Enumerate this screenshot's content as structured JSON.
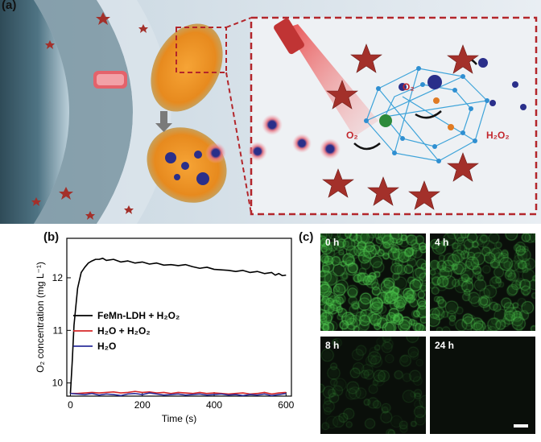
{
  "panels": {
    "a": {
      "label": "(a)",
      "annotations": {
        "o2_upper": "O₂",
        "o2_lower": "O₂",
        "h2o2": "H₂O₂"
      },
      "colors": {
        "membrane": "#3f5f6e",
        "star": "#a3302a",
        "dashed_border": "#b3262b",
        "particle": "#2a2f8a",
        "laser": "#d84a4a",
        "ldh_sheet": "#3da3d9"
      }
    },
    "b": {
      "label": "(b)"
    },
    "c": {
      "label": "(c)",
      "images": [
        {
          "label": "0 h",
          "intensity": 1.0
        },
        {
          "label": "4 h",
          "intensity": 0.7
        },
        {
          "label": "8 h",
          "intensity": 0.3
        },
        {
          "label": "24 h",
          "intensity": 0.0
        }
      ],
      "colors": {
        "fluorescence": "#3fbf3f",
        "background": "#0a0f0a"
      }
    }
  },
  "chart_data": {
    "type": "line",
    "xlabel": "Time (s)",
    "ylabel": "O₂ concentration (mg L⁻¹)",
    "xlim": [
      -10,
      615
    ],
    "ylim": [
      9.75,
      12.75
    ],
    "xticks": [
      0,
      200,
      400,
      600
    ],
    "yticks": [
      10,
      11,
      12
    ],
    "legend_position": "middle-left",
    "series": [
      {
        "name": "FeMn-LDH + H₂O₂",
        "color": "#000000",
        "x": [
          0,
          5,
          10,
          20,
          30,
          40,
          50,
          60,
          70,
          80,
          90,
          100,
          120,
          140,
          160,
          180,
          200,
          220,
          240,
          260,
          280,
          300,
          320,
          340,
          360,
          380,
          400,
          420,
          440,
          460,
          480,
          500,
          520,
          540,
          560,
          570,
          580,
          590,
          600
        ],
        "y": [
          9.8,
          10.4,
          11.1,
          11.8,
          12.1,
          12.2,
          12.28,
          12.32,
          12.35,
          12.35,
          12.37,
          12.33,
          12.35,
          12.3,
          12.32,
          12.28,
          12.3,
          12.26,
          12.28,
          12.24,
          12.25,
          12.23,
          12.25,
          12.21,
          12.18,
          12.2,
          12.16,
          12.15,
          12.14,
          12.12,
          12.14,
          12.1,
          12.12,
          12.08,
          12.1,
          12.05,
          12.08,
          12.04,
          12.05
        ]
      },
      {
        "name": "H₂O + H₂O₂",
        "color": "#d62728",
        "x": [
          0,
          20,
          40,
          60,
          80,
          100,
          120,
          140,
          160,
          180,
          200,
          220,
          240,
          260,
          280,
          300,
          320,
          340,
          360,
          380,
          400,
          420,
          440,
          460,
          480,
          500,
          520,
          540,
          560,
          580,
          600
        ],
        "y": [
          9.8,
          9.8,
          9.81,
          9.82,
          9.81,
          9.82,
          9.83,
          9.81,
          9.82,
          9.84,
          9.82,
          9.83,
          9.81,
          9.82,
          9.8,
          9.82,
          9.81,
          9.8,
          9.82,
          9.8,
          9.81,
          9.8,
          9.79,
          9.8,
          9.81,
          9.79,
          9.8,
          9.82,
          9.79,
          9.81,
          9.82
        ]
      },
      {
        "name": "H₂O",
        "color": "#2b2f9c",
        "x": [
          0,
          20,
          40,
          60,
          80,
          100,
          120,
          140,
          160,
          180,
          200,
          220,
          240,
          260,
          280,
          300,
          320,
          340,
          360,
          380,
          400,
          420,
          440,
          460,
          480,
          500,
          520,
          540,
          560,
          580,
          600
        ],
        "y": [
          9.8,
          9.79,
          9.78,
          9.8,
          9.77,
          9.79,
          9.78,
          9.76,
          9.79,
          9.8,
          9.78,
          9.81,
          9.79,
          9.77,
          9.78,
          9.79,
          9.77,
          9.78,
          9.79,
          9.77,
          9.78,
          9.79,
          9.77,
          9.78,
          9.76,
          9.78,
          9.77,
          9.79,
          9.76,
          9.78,
          9.8
        ]
      }
    ]
  }
}
